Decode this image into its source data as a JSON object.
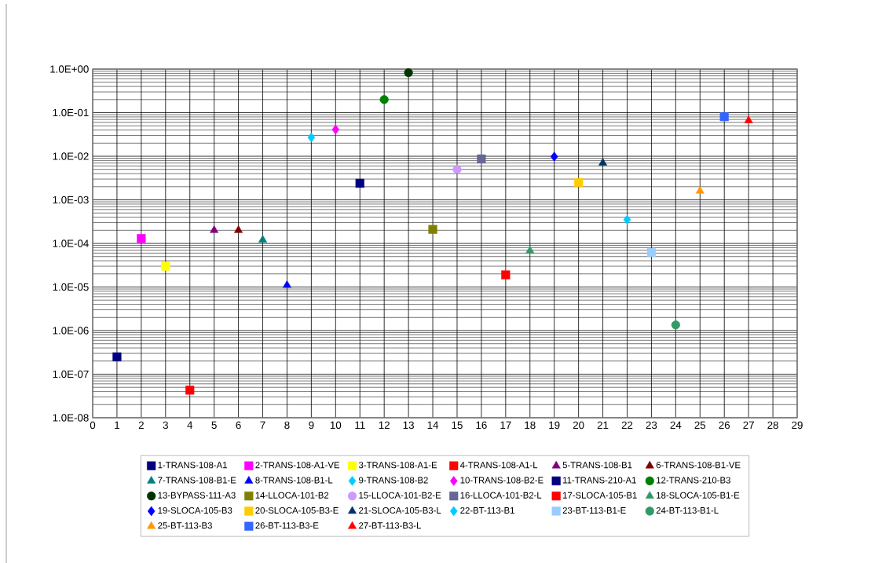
{
  "chart_data": {
    "type": "scatter",
    "xlim": [
      0,
      29
    ],
    "xticks": [
      0,
      1,
      2,
      3,
      4,
      5,
      6,
      7,
      8,
      9,
      10,
      11,
      12,
      13,
      14,
      15,
      16,
      17,
      18,
      19,
      20,
      21,
      22,
      23,
      24,
      25,
      26,
      27,
      28,
      29
    ],
    "ylim": [
      1e-08,
      1
    ],
    "yticks": [
      {
        "value": 1e-08,
        "label": "1.0E-08"
      },
      {
        "value": 1e-07,
        "label": "1.0E-07"
      },
      {
        "value": 1e-06,
        "label": "1.0E-06"
      },
      {
        "value": 1e-05,
        "label": "1.0E-05"
      },
      {
        "value": 0.0001,
        "label": "1.0E-04"
      },
      {
        "value": 0.001,
        "label": "1.0E-03"
      },
      {
        "value": 0.01,
        "label": "1.0E-02"
      },
      {
        "value": 0.1,
        "label": "1.0E-01"
      },
      {
        "value": 1,
        "label": "1.0E+00"
      }
    ],
    "log": "y",
    "grid": true,
    "legend": "bottom",
    "series": [
      {
        "name": "1-TRANS-108-A1",
        "color": "#000080",
        "marker": "square",
        "x": [
          1
        ],
        "values": [
          2.5e-07
        ]
      },
      {
        "name": "2-TRANS-108-A1-VE",
        "color": "#ff00ff",
        "marker": "square",
        "x": [
          2
        ],
        "values": [
          0.00013
        ]
      },
      {
        "name": "3-TRANS-108-A1-E",
        "color": "#ffff00",
        "marker": "square",
        "x": [
          3
        ],
        "values": [
          3e-05
        ]
      },
      {
        "name": "4-TRANS-108-A1-L",
        "color": "#ff0000",
        "marker": "square",
        "x": [
          4
        ],
        "values": [
          4.3e-08
        ]
      },
      {
        "name": "5-TRANS-108-B1",
        "color": "#800080",
        "marker": "triangle",
        "x": [
          5
        ],
        "values": [
          0.0002
        ]
      },
      {
        "name": "6-TRANS-108-B1-VE",
        "color": "#800000",
        "marker": "triangle",
        "x": [
          6
        ],
        "values": [
          0.0002
        ]
      },
      {
        "name": "7-TRANS-108-B1-E",
        "color": "#008080",
        "marker": "triangle",
        "x": [
          7
        ],
        "values": [
          0.00012
        ]
      },
      {
        "name": "8-TRANS-108-B1-L",
        "color": "#0000ff",
        "marker": "triangle",
        "x": [
          8
        ],
        "values": [
          1.1e-05
        ]
      },
      {
        "name": "9-TRANS-108-B2",
        "color": "#00ccff",
        "marker": "diamond",
        "x": [
          9
        ],
        "values": [
          0.027
        ]
      },
      {
        "name": "10-TRANS-108-B2-E",
        "color": "#ff00ff",
        "marker": "diamond",
        "x": [
          10
        ],
        "values": [
          0.041
        ]
      },
      {
        "name": "11-TRANS-210-A1",
        "color": "#000080",
        "marker": "square",
        "x": [
          11
        ],
        "values": [
          0.0024
        ]
      },
      {
        "name": "12-TRANS-210-B3",
        "color": "#008000",
        "marker": "circle",
        "x": [
          12
        ],
        "values": [
          0.2
        ]
      },
      {
        "name": "13-BYPASS-111-A3",
        "color": "#003300",
        "marker": "circle",
        "x": [
          13
        ],
        "values": [
          0.83
        ]
      },
      {
        "name": "14-LLOCA-101-B2",
        "color": "#808000",
        "marker": "square",
        "x": [
          14
        ],
        "values": [
          0.00021
        ]
      },
      {
        "name": "15-LLOCA-101-B2-E",
        "color": "#cc99ff",
        "marker": "circle",
        "x": [
          15
        ],
        "values": [
          0.005
        ]
      },
      {
        "name": "16-LLOCA-101-B2-L",
        "color": "#666699",
        "marker": "square",
        "x": [
          16
        ],
        "values": [
          0.0087
        ]
      },
      {
        "name": "17-SLOCA-105-B1",
        "color": "#ff0000",
        "marker": "square",
        "x": [
          17
        ],
        "values": [
          1.9e-05
        ]
      },
      {
        "name": "18-SLOCA-105-B1-E",
        "color": "#339966",
        "marker": "triangle",
        "x": [
          18
        ],
        "values": [
          6.8e-05
        ]
      },
      {
        "name": "19-SLOCA-105-B3",
        "color": "#0000ff",
        "marker": "diamond",
        "x": [
          19
        ],
        "values": [
          0.0098
        ]
      },
      {
        "name": "20-SLOCA-105-B3-E",
        "color": "#ffcc00",
        "marker": "square",
        "x": [
          20
        ],
        "values": [
          0.0025
        ]
      },
      {
        "name": "21-SLOCA-105-B3-L",
        "color": "#003366",
        "marker": "triangle",
        "x": [
          21
        ],
        "values": [
          0.007
        ]
      },
      {
        "name": "22-BT-113-B1",
        "color": "#00ccff",
        "marker": "diamond",
        "x": [
          22
        ],
        "values": [
          0.00035
        ]
      },
      {
        "name": "23-BT-113-B1-E",
        "color": "#99ccff",
        "marker": "square",
        "x": [
          23
        ],
        "values": [
          6.2e-05
        ]
      },
      {
        "name": "24-BT-113-B1-L",
        "color": "#339966",
        "marker": "circle",
        "x": [
          24
        ],
        "values": [
          1.35e-06
        ]
      },
      {
        "name": "25-BT-113-B3",
        "color": "#ff9900",
        "marker": "triangle",
        "x": [
          25
        ],
        "values": [
          0.0016
        ]
      },
      {
        "name": "26-BT-113-B3-E",
        "color": "#3366ff",
        "marker": "square",
        "x": [
          26
        ],
        "values": [
          0.081
        ]
      },
      {
        "name": "27-BT-113-B3-L",
        "color": "#ff0000",
        "marker": "triangle",
        "x": [
          27
        ],
        "values": [
          0.066
        ]
      }
    ]
  }
}
